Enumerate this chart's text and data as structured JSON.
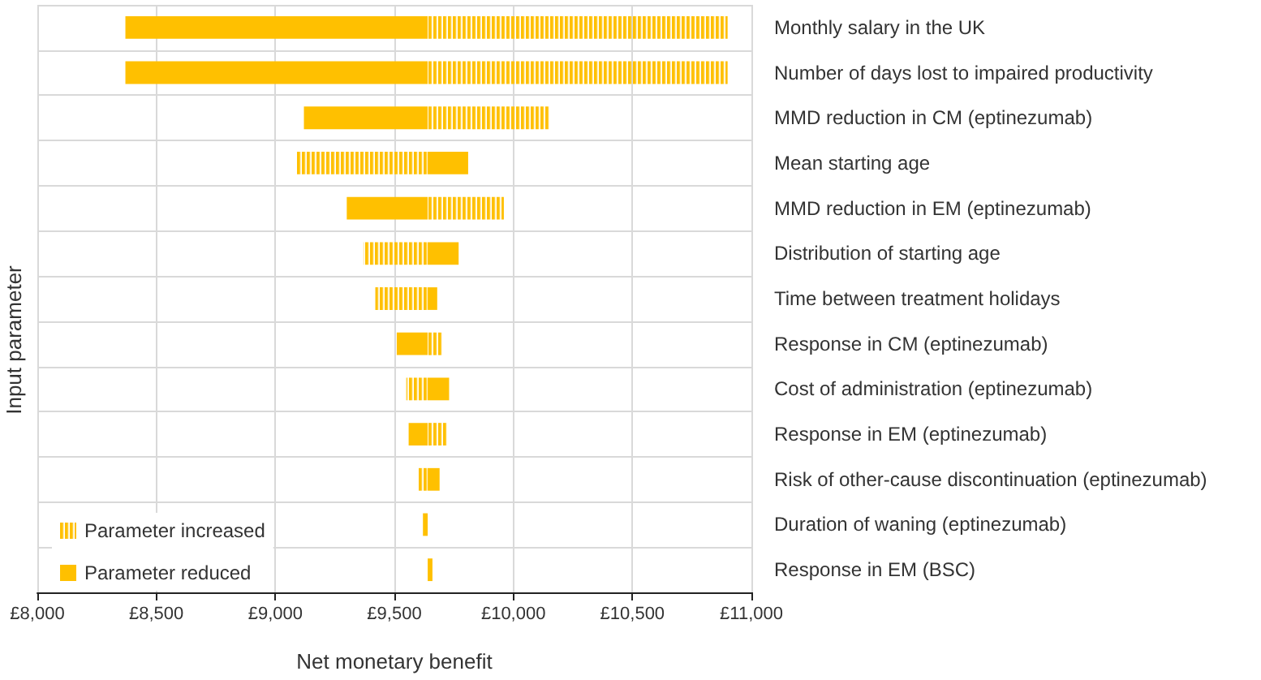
{
  "chart_data": {
    "type": "bar",
    "orientation": "horizontal",
    "xlabel": "Net monetary benefit",
    "ylabel": "Input parameter",
    "categories": [
      "Monthly salary in the UK",
      "Number of days lost to impaired productivity",
      "MMD reduction in CM (eptinezumab)",
      "Mean starting age",
      "MMD reduction in EM (eptinezumab)",
      "Distribution of starting age",
      "Time between treatment holidays",
      "Response in CM (eptinezumab)",
      "Cost of administration (eptinezumab)",
      "Response in EM (eptinezumab)",
      "Risk of other-cause discontinuation (eptinezumab)",
      "Duration of waning (eptinezumab)",
      "Response in EM (BSC)"
    ],
    "series": [
      {
        "name": "Parameter increased",
        "color": "#ffc000",
        "base": [
          9640,
          9640,
          9640,
          9640,
          9640,
          9640,
          9640,
          9640,
          9640,
          9640,
          9640,
          null,
          null
        ],
        "values": [
          1260,
          1260,
          510,
          -550,
          320,
          -270,
          -220,
          60,
          -90,
          80,
          -40,
          null,
          null
        ]
      },
      {
        "name": "Parameter reduced",
        "color": "#ffc000",
        "base": [
          9640,
          9640,
          9640,
          9640,
          9640,
          9640,
          9640,
          9640,
          9640,
          9640,
          9640,
          9640,
          9640
        ],
        "values": [
          -1270,
          -1270,
          -520,
          170,
          -340,
          130,
          40,
          -130,
          90,
          -80,
          50,
          -20,
          20
        ]
      }
    ],
    "xlim": [
      8000,
      11000
    ],
    "xticks": [
      {
        "value": 8000,
        "label": "£8,000"
      },
      {
        "value": 8500,
        "label": "£8,500"
      },
      {
        "value": 9000,
        "label": "£9,000"
      },
      {
        "value": 9500,
        "label": "£9,500"
      },
      {
        "value": 10000,
        "label": "£10,000"
      },
      {
        "value": 10500,
        "label": "£10,500"
      },
      {
        "value": 11000,
        "label": "£11,000"
      }
    ],
    "grid": true,
    "legend": "bottom left"
  }
}
